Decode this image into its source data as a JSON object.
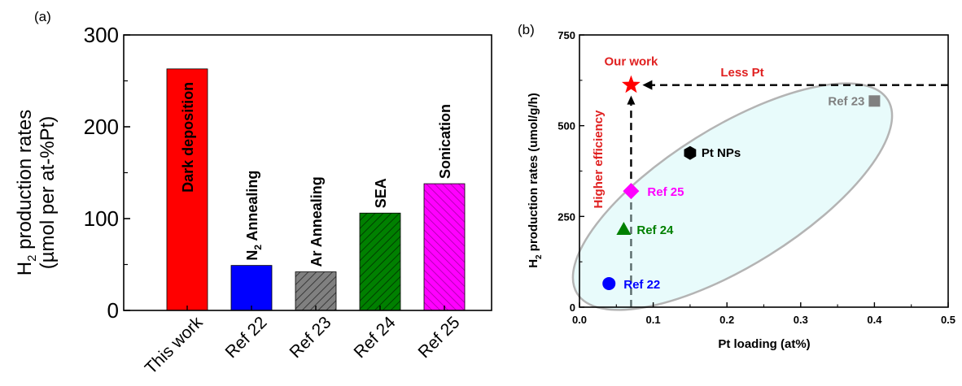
{
  "panels": {
    "a": {
      "label": "(a)"
    },
    "b": {
      "label": "(b)"
    }
  },
  "colors": {
    "this_work": "#ff0000",
    "ref22": "#0000ff",
    "ref23": "#808080",
    "ref24": "#008000",
    "ref25": "#ff00ff",
    "pt_nps": "#000000",
    "ellipse_fill": "#e8fbfb",
    "ellipse_stroke": "#b4b4b4",
    "annotation_red": "#e02020",
    "ref23_label": "#808080"
  },
  "chart_data": [
    {
      "type": "bar",
      "panel": "(a)",
      "ylabel_line1_sub": "2",
      "ylabel_line1_a": "H",
      "ylabel_line1_b": " production rates",
      "ylabel_line2": "(µmol per at-%Pt)",
      "ylim": [
        0,
        300
      ],
      "yticks": [
        "0",
        "100",
        "200",
        "300"
      ],
      "categories": [
        "This work",
        "Ref 22",
        "Ref 23",
        "Ref 24",
        "Ref 25"
      ],
      "values": [
        263,
        49,
        42,
        106,
        138
      ],
      "bar_labels": [
        "Dark deposition",
        "N2 Annealing",
        "Ar Annealing",
        "SEA",
        "Sonication"
      ],
      "bar_label_n2_main": "N",
      "bar_label_n2_sub": "2",
      "bar_label_n2_rest": " Annealing",
      "patterns": [
        "solid",
        "solid",
        "hatch",
        "hatch",
        "hatch"
      ]
    },
    {
      "type": "scatter",
      "panel": "(b)",
      "xlabel": "Pt loading (at%)",
      "ylabel_a": "H",
      "ylabel_sub": "2",
      "ylabel_b": " production rates (umol/g/h)",
      "xlim": [
        0,
        0.5
      ],
      "ylim": [
        0,
        750
      ],
      "xticks": [
        "0.0",
        "0.1",
        "0.2",
        "0.3",
        "0.4",
        "0.5"
      ],
      "yticks": [
        "0",
        "250",
        "500",
        "750"
      ],
      "points": [
        {
          "label": "Our work",
          "x": 0.07,
          "y": 612,
          "marker": "star"
        },
        {
          "label": "Ref 23",
          "x": 0.4,
          "y": 568,
          "marker": "square"
        },
        {
          "label": "Pt NPs",
          "x": 0.15,
          "y": 425,
          "marker": "hexagon"
        },
        {
          "label": "Ref 25",
          "x": 0.07,
          "y": 320,
          "marker": "diamond"
        },
        {
          "label": "Ref 24",
          "x": 0.06,
          "y": 215,
          "marker": "triangle"
        },
        {
          "label": "Ref 22",
          "x": 0.04,
          "y": 65,
          "marker": "circle"
        }
      ],
      "annotations": {
        "less_pt": "Less Pt",
        "higher_efficiency": "Higher efficiency"
      }
    }
  ]
}
